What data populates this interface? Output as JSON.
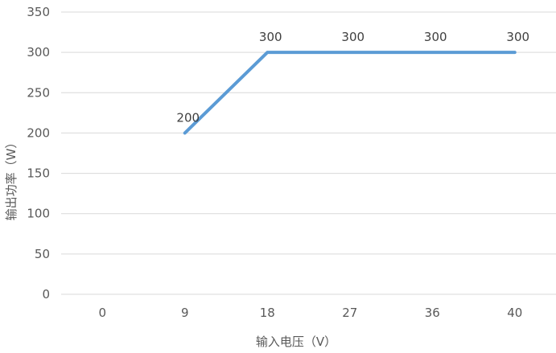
{
  "chart_data": {
    "type": "line",
    "title": "",
    "xlabel": "输入电压（V）",
    "ylabel": "输出功率（W）",
    "categories": [
      "0",
      "9",
      "18",
      "27",
      "36",
      "40"
    ],
    "series": [
      {
        "values": [
          null,
          200,
          300,
          300,
          300,
          300
        ]
      }
    ],
    "data_labels": [
      "",
      "200",
      "300",
      "300",
      "300",
      "300"
    ],
    "yticks": [
      0,
      50,
      100,
      150,
      200,
      250,
      300,
      350
    ],
    "ylim": [
      0,
      350
    ],
    "grid": true,
    "legend": "none",
    "colors": {
      "series": "#5b9bd5",
      "grid": "#d9d9d9",
      "text": "#595959"
    }
  }
}
